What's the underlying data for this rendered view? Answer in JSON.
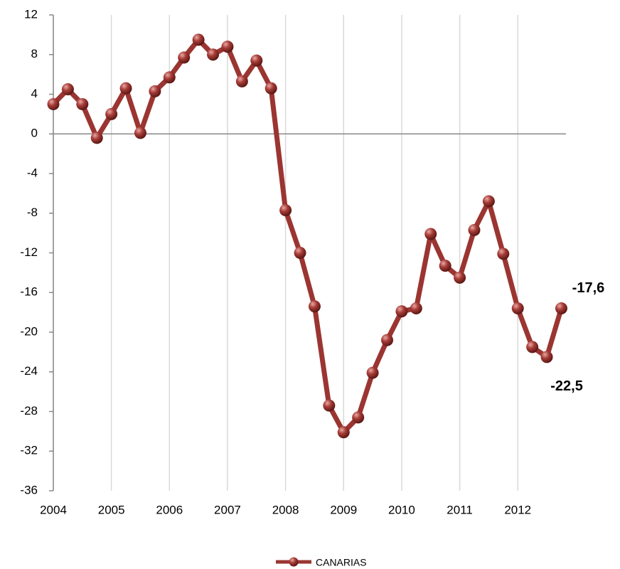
{
  "chart_data": {
    "type": "line",
    "x": [
      2004,
      2004.25,
      2004.5,
      2004.75,
      2005,
      2005.25,
      2005.5,
      2005.75,
      2006,
      2006.25,
      2006.5,
      2006.75,
      2007,
      2007.25,
      2007.5,
      2007.75,
      2008,
      2008.25,
      2008.5,
      2008.75,
      2009,
      2009.25,
      2009.5,
      2009.75,
      2010,
      2010.25,
      2010.5,
      2010.75,
      2011,
      2011.25,
      2011.5,
      2011.75,
      2012,
      2012.25,
      2012.5,
      2012.75
    ],
    "series": [
      {
        "name": "CANARIAS",
        "color": "#9b3531",
        "values": [
          3.0,
          4.5,
          3.0,
          -0.4,
          2.0,
          4.6,
          0.1,
          4.3,
          5.7,
          7.7,
          9.5,
          8.0,
          8.8,
          5.3,
          7.4,
          4.6,
          -7.7,
          -12.0,
          -17.4,
          -27.4,
          -30.1,
          -28.6,
          -24.1,
          -20.8,
          -17.9,
          -17.6,
          -10.1,
          -13.3,
          -14.5,
          -9.7,
          -6.8,
          -12.1,
          -17.6,
          -21.5,
          -22.5,
          -17.6
        ],
        "value_labels": [
          null,
          null,
          null,
          null,
          null,
          null,
          null,
          null,
          null,
          null,
          null,
          null,
          null,
          null,
          null,
          null,
          null,
          null,
          null,
          null,
          null,
          null,
          null,
          null,
          null,
          null,
          null,
          null,
          null,
          null,
          null,
          null,
          null,
          null,
          "-22,5",
          "-17,6"
        ]
      }
    ],
    "xlim": [
      2004,
      2012.83
    ],
    "xticks": [
      2004,
      2005,
      2006,
      2007,
      2008,
      2009,
      2010,
      2011,
      2012
    ],
    "ylim": [
      -36,
      12
    ],
    "yticks": [
      12,
      8,
      4,
      0,
      -4,
      -8,
      -12,
      -16,
      -20,
      -24,
      -28,
      -32,
      -36
    ],
    "grid": true,
    "legend": "bottom"
  }
}
